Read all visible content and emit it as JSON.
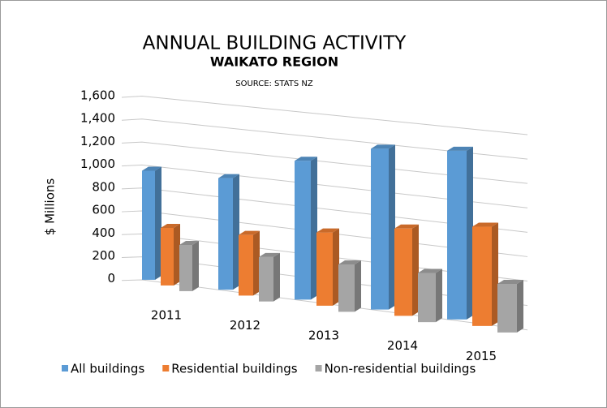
{
  "chart_data": {
    "type": "bar3d",
    "title": "ANNUAL BUILDING ACTIVITY",
    "subtitle": "WAIKATO REGION",
    "source": "SOURCE: STATS NZ",
    "ylabel": "$ Millions",
    "categories": [
      "2011",
      "2012",
      "2013",
      "2014",
      "2015"
    ],
    "series": [
      {
        "name": "All buildings",
        "color": "#5b9bd5",
        "values": [
          950,
          960,
          1180,
          1350,
          1400
        ]
      },
      {
        "name": "Residential buildings",
        "color": "#ed7d31",
        "values": [
          500,
          520,
          620,
          730,
          820
        ]
      },
      {
        "name": "Non-residential buildings",
        "color": "#a5a5a5",
        "values": [
          400,
          380,
          400,
          410,
          400
        ]
      }
    ],
    "ylim": [
      0,
      1600
    ],
    "yticks": [
      0,
      200,
      400,
      600,
      800,
      {
        "value": 1000,
        "label": "1,000"
      },
      {
        "value": 1200,
        "label": "1,200"
      },
      {
        "value": 1400,
        "label": "1,400"
      },
      {
        "value": 1600,
        "label": "1,600"
      }
    ],
    "grid": true,
    "legend": "bottom"
  }
}
